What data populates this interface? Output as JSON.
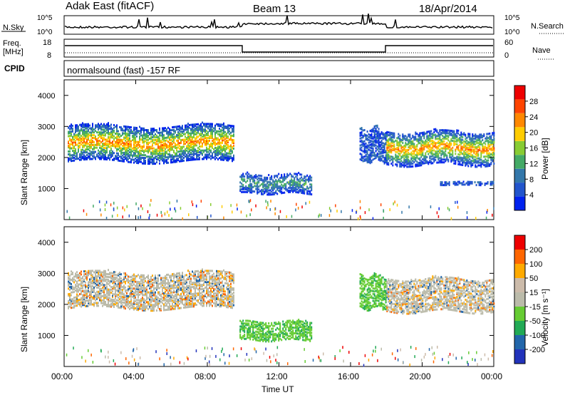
{
  "header": {
    "station": "Adak East (fitACF)",
    "beam": "Beam 13",
    "date": "18/Apr/2014"
  },
  "noise_panel": {
    "left_label": "N.Sky",
    "right_label": "N.Search",
    "ticks_left": [
      "10^5",
      "10^0"
    ],
    "ticks_right": [
      "10^5",
      "10^0"
    ]
  },
  "freq_panel": {
    "left_label_line1": "Freq.",
    "left_label_line2": "[MHz]",
    "right_label": "Nave",
    "ticks_left": [
      "18",
      "8"
    ],
    "ticks_right": [
      "60",
      "0"
    ]
  },
  "cpid_panel": {
    "label": "CPID",
    "text": "normalsound (fast) -157 RF"
  },
  "time_axis": {
    "label": "Time UT",
    "ticks": [
      "00:00",
      "04:00",
      "08:00",
      "12:00",
      "16:00",
      "20:00",
      "00:00"
    ]
  },
  "colors": {
    "power": [
      "#0022ee",
      "#2255cc",
      "#3377aa",
      "#44aa66",
      "#88cc33",
      "#ffcc00",
      "#ff8800",
      "#ff4400",
      "#ee0000"
    ],
    "velocity": [
      "#2233bb",
      "#2266aa",
      "#22aa55",
      "#66cc33",
      "#bbbbaa",
      "#ccbbaa",
      "#ffaa00",
      "#ff6600",
      "#ee0000"
    ]
  },
  "chart_data": [
    {
      "type": "heatmap",
      "name": "power-panel",
      "ylabel": "Slant Range [km]",
      "xlabel": "",
      "ylim": [
        0,
        4500
      ],
      "y_ticks": [
        "1000",
        "2000",
        "3000",
        "4000"
      ],
      "colorbar": {
        "label": "Power [dB]",
        "ticks": [
          "4",
          "8",
          "12",
          "16",
          "20",
          "24",
          "28"
        ]
      },
      "bands": [
        {
          "x0": 0.2,
          "x1": 9.5,
          "y0": 1800,
          "y1": 3100,
          "level": "high"
        },
        {
          "x0": 9.8,
          "x1": 13.8,
          "y0": 800,
          "y1": 1500,
          "level": "mid"
        },
        {
          "x0": 16.5,
          "x1": 18,
          "y0": 1800,
          "y1": 3000,
          "level": "low"
        },
        {
          "x0": 18,
          "x1": 24,
          "y0": 1700,
          "y1": 2900,
          "level": "high"
        },
        {
          "x0": 21,
          "x1": 24,
          "y0": 1100,
          "y1": 1250,
          "level": "low"
        }
      ]
    },
    {
      "type": "heatmap",
      "name": "velocity-panel",
      "ylabel": "Slant Range [km]",
      "xlabel": "Time UT",
      "ylim": [
        0,
        4500
      ],
      "y_ticks": [
        "1000",
        "2000",
        "3000",
        "4000"
      ],
      "colorbar": {
        "label": "Velocity [m s⁻¹]",
        "ticks": [
          "200",
          "100",
          "50",
          "15",
          "-15",
          "-50",
          "-100",
          "-200"
        ]
      },
      "bands": [
        {
          "x0": 0.2,
          "x1": 9.5,
          "y0": 1800,
          "y1": 3100,
          "level": "gray"
        },
        {
          "x0": 9.8,
          "x1": 13.8,
          "y0": 800,
          "y1": 1500,
          "level": "green"
        },
        {
          "x0": 16.5,
          "x1": 18,
          "y0": 1800,
          "y1": 3000,
          "level": "green"
        },
        {
          "x0": 18,
          "x1": 24,
          "y0": 1700,
          "y1": 2900,
          "level": "gray"
        }
      ]
    }
  ]
}
